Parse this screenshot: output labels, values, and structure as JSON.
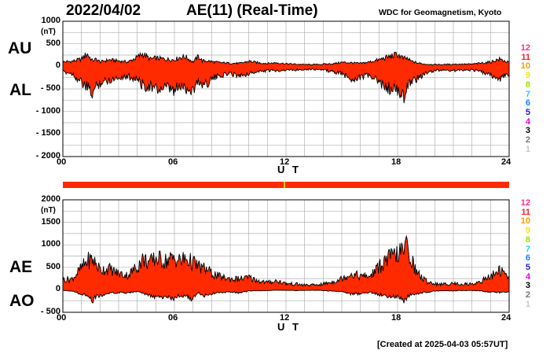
{
  "header": {
    "date": "2022/04/02",
    "title": "AE(11) (Real-Time)",
    "institution": "WDC for Geomagnetism, Kyoto"
  },
  "footer": {
    "created": "[Created at 2025-04-03 05:57UT]"
  },
  "colors": {
    "fill": "#ff2a00",
    "outline": "#000000",
    "grid": "#b0b0b0",
    "status_bar": "#ff2a00",
    "status_mark": "#c8d200"
  },
  "levels": [
    {
      "label": "12",
      "color": "#ff2b8a"
    },
    {
      "label": "11",
      "color": "#ff1e1e"
    },
    {
      "label": "10",
      "color": "#ff9a00"
    },
    {
      "label": "9",
      "color": "#ffe000"
    },
    {
      "label": "8",
      "color": "#a0e000"
    },
    {
      "label": "7",
      "color": "#20d8d8"
    },
    {
      "label": "6",
      "color": "#1c7cff"
    },
    {
      "label": "5",
      "color": "#2020c8"
    },
    {
      "label": "4",
      "color": "#e000e0"
    },
    {
      "label": "3",
      "color": "#000000"
    },
    {
      "label": "2",
      "color": "#777777"
    },
    {
      "label": "1",
      "color": "#c8c8c8"
    }
  ],
  "chart_data": [
    {
      "type": "area",
      "side_labels": [
        "AU",
        "AL"
      ],
      "unit": "(nT)",
      "xlabel": "U T",
      "xticks": [
        "00",
        "06",
        "12",
        "18",
        "24"
      ],
      "xlim": [
        0,
        24
      ],
      "ylim": [
        -2000,
        1000
      ],
      "yticks": [
        "1000",
        "500",
        "0",
        "- 500",
        "- 1000",
        "- 1500",
        "- 2000"
      ],
      "grid": true,
      "x": [
        0,
        0.5,
        1,
        1.3,
        1.6,
        1.8,
        2,
        2.5,
        3,
        3.5,
        4,
        4.3,
        4.7,
        5,
        5.5,
        6,
        6.3,
        6.6,
        7,
        7.3,
        7.5,
        7.8,
        8,
        8.5,
        9,
        9.5,
        10,
        10.5,
        11,
        11.5,
        12,
        12.5,
        13,
        13.5,
        14,
        14.5,
        15,
        15.5,
        16,
        16.5,
        17,
        17.5,
        18,
        18.3,
        18.5,
        18.7,
        19,
        19.5,
        20,
        20.5,
        21,
        21.5,
        22,
        22.5,
        23,
        23.5,
        24
      ],
      "series": [
        {
          "values": [
            120,
            140,
            200,
            350,
            150,
            200,
            120,
            180,
            150,
            120,
            250,
            350,
            200,
            230,
            200,
            180,
            250,
            260,
            120,
            280,
            150,
            150,
            130,
            100,
            90,
            80,
            140,
            100,
            80,
            100,
            70,
            60,
            50,
            50,
            60,
            70,
            110,
            100,
            80,
            120,
            180,
            260,
            330,
            220,
            220,
            150,
            100,
            60,
            50,
            50,
            60,
            60,
            60,
            90,
            120,
            200,
            100
          ]
        },
        {
          "values": [
            -150,
            -200,
            -450,
            -600,
            -750,
            -550,
            -450,
            -380,
            -300,
            -280,
            -350,
            -520,
            -550,
            -650,
            -600,
            -700,
            -550,
            -600,
            -650,
            -400,
            -500,
            -450,
            -350,
            -250,
            -200,
            -250,
            -200,
            -150,
            -120,
            -120,
            -100,
            -100,
            -80,
            -80,
            -100,
            -150,
            -200,
            -350,
            -300,
            -250,
            -450,
            -600,
            -700,
            -850,
            -650,
            -400,
            -350,
            -200,
            -120,
            -100,
            -120,
            -100,
            -100,
            -150,
            -250,
            -350,
            -200
          ]
        }
      ]
    },
    {
      "type": "area",
      "side_labels": [
        "AE",
        "AO"
      ],
      "unit": "(nT)",
      "xlabel": "U T",
      "xticks": [
        "00",
        "06",
        "12",
        "18",
        "24"
      ],
      "xlim": [
        0,
        24
      ],
      "ylim": [
        -500,
        2000
      ],
      "yticks": [
        "2000",
        "1500",
        "1000",
        "500",
        "0",
        "- 500"
      ],
      "grid": true,
      "x": [
        0,
        0.5,
        1,
        1.3,
        1.6,
        1.8,
        2,
        2.5,
        3,
        3.5,
        4,
        4.3,
        4.7,
        5,
        5.5,
        6,
        6.3,
        6.6,
        7,
        7.3,
        7.5,
        7.8,
        8,
        8.5,
        9,
        9.5,
        10,
        10.5,
        11,
        11.5,
        12,
        12.5,
        13,
        13.5,
        14,
        14.5,
        15,
        15.5,
        16,
        16.5,
        17,
        17.5,
        18,
        18.3,
        18.5,
        18.7,
        19,
        19.5,
        20,
        20.5,
        21,
        21.5,
        22,
        22.5,
        23,
        23.5,
        24
      ],
      "series": [
        {
          "values": [
            280,
            300,
            600,
            800,
            850,
            700,
            560,
            580,
            450,
            400,
            650,
            850,
            750,
            880,
            800,
            880,
            800,
            860,
            750,
            650,
            600,
            550,
            450,
            350,
            300,
            300,
            340,
            250,
            200,
            250,
            170,
            160,
            130,
            130,
            160,
            220,
            310,
            450,
            380,
            370,
            630,
            860,
            1000,
            1050,
            1250,
            900,
            500,
            250,
            170,
            150,
            180,
            160,
            160,
            240,
            370,
            550,
            300
          ]
        },
        {
          "values": [
            -20,
            -30,
            -120,
            -130,
            -300,
            -175,
            -165,
            -100,
            -75,
            -80,
            -50,
            -85,
            -175,
            -210,
            -200,
            -260,
            -150,
            -170,
            -265,
            -60,
            -175,
            -150,
            -110,
            -75,
            -55,
            -85,
            -30,
            -25,
            -20,
            -10,
            -15,
            -20,
            -15,
            -15,
            -20,
            -40,
            -45,
            -125,
            -110,
            -65,
            -135,
            -170,
            -185,
            -315,
            -215,
            -125,
            -125,
            -70,
            -35,
            -25,
            -30,
            -20,
            -20,
            -30,
            -65,
            -75,
            -50
          ]
        }
      ]
    }
  ]
}
